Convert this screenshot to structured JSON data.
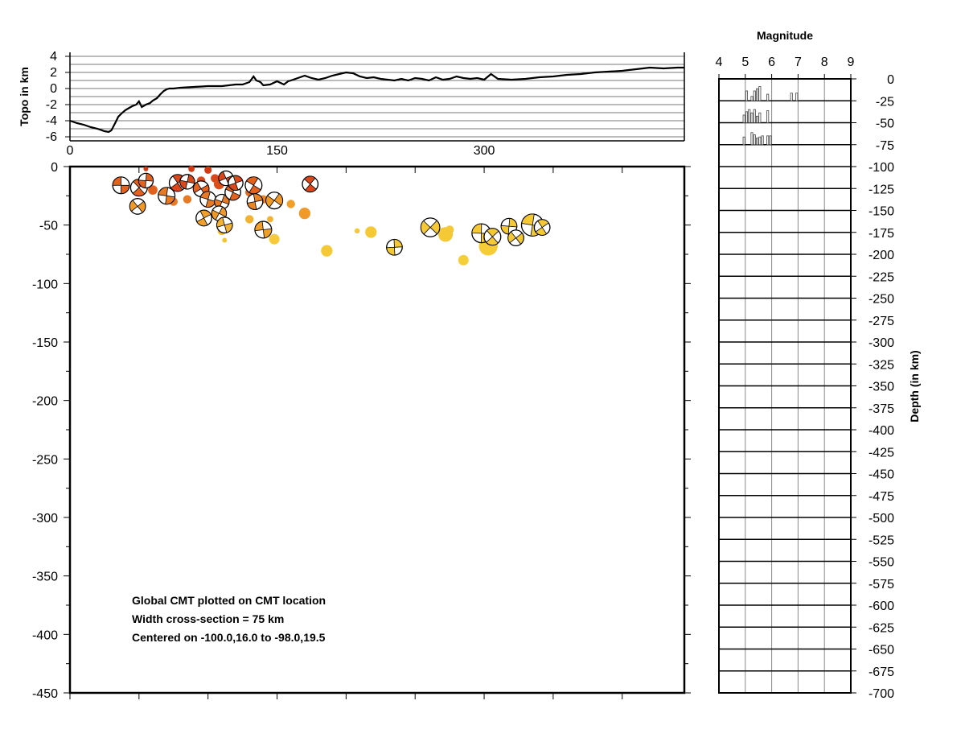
{
  "chart_data": [
    {
      "type": "line",
      "panel": "topography",
      "ylabel": "Topo in km",
      "xlim": [
        0,
        445
      ],
      "ylim": [
        -6.5,
        4.5
      ],
      "x_ticks": [
        "0",
        "150",
        "300"
      ],
      "y_ticks": [
        "4",
        "2",
        "0",
        "-2",
        "-4",
        "-6"
      ],
      "x": [
        0,
        5,
        10,
        15,
        20,
        25,
        28,
        30,
        33,
        35,
        38,
        40,
        43,
        45,
        48,
        50,
        52,
        55,
        58,
        60,
        63,
        65,
        68,
        70,
        72,
        75,
        80,
        90,
        100,
        110,
        120,
        125,
        130,
        133,
        135,
        138,
        140,
        145,
        150,
        155,
        158,
        160,
        165,
        170,
        175,
        180,
        185,
        190,
        195,
        200,
        205,
        210,
        215,
        220,
        225,
        230,
        235,
        240,
        245,
        250,
        255,
        260,
        265,
        270,
        275,
        280,
        285,
        290,
        295,
        300,
        305,
        310,
        320,
        330,
        340,
        350,
        360,
        370,
        380,
        390,
        400,
        410,
        420,
        430,
        440,
        445
      ],
      "y": [
        -4.0,
        -4.3,
        -4.5,
        -4.8,
        -5.0,
        -5.3,
        -5.4,
        -5.2,
        -4.2,
        -3.5,
        -3.0,
        -2.7,
        -2.4,
        -2.2,
        -2.0,
        -1.6,
        -2.3,
        -2.0,
        -1.8,
        -1.5,
        -1.2,
        -0.8,
        -0.3,
        -0.1,
        0.0,
        0.0,
        0.1,
        0.2,
        0.3,
        0.3,
        0.5,
        0.5,
        0.8,
        1.5,
        1.0,
        0.8,
        0.4,
        0.5,
        0.9,
        0.5,
        0.9,
        1.0,
        1.3,
        1.6,
        1.3,
        1.1,
        1.3,
        1.6,
        1.8,
        2.0,
        1.9,
        1.5,
        1.3,
        1.4,
        1.2,
        1.1,
        1.0,
        1.2,
        1.0,
        1.3,
        1.2,
        1.0,
        1.4,
        1.1,
        1.2,
        1.5,
        1.3,
        1.2,
        1.3,
        1.1,
        1.8,
        1.2,
        1.1,
        1.2,
        1.4,
        1.5,
        1.7,
        1.8,
        2.0,
        2.1,
        2.2,
        2.4,
        2.6,
        2.5,
        2.6,
        2.6
      ]
    },
    {
      "type": "scatter",
      "panel": "cross-section",
      "xlim": [
        0,
        445
      ],
      "ylim": [
        -450,
        0
      ],
      "y_ticks": [
        "0",
        "-50",
        "-100",
        "-150",
        "-200",
        "-250",
        "-300",
        "-350",
        "-400",
        "-450"
      ],
      "points": [
        {
          "x": 55,
          "y": -2,
          "mag": 4.6,
          "color": "#d33a12"
        },
        {
          "x": 88,
          "y": -2,
          "mag": 4.8,
          "color": "#d33a12"
        },
        {
          "x": 100,
          "y": -3,
          "mag": 4.9,
          "color": "#d33a12"
        },
        {
          "x": 105,
          "y": -10,
          "mag": 5.0,
          "color": "#d9471a"
        },
        {
          "x": 108,
          "y": -15,
          "mag": 5.2,
          "color": "#dc4e1a"
        },
        {
          "x": 95,
          "y": -12,
          "mag": 5.0,
          "color": "#d9471a"
        },
        {
          "x": 60,
          "y": -20,
          "mag": 5.1,
          "color": "#e0601c"
        },
        {
          "x": 70,
          "y": -22,
          "mag": 5.0,
          "color": "#e36b20"
        },
        {
          "x": 75,
          "y": -30,
          "mag": 5.0,
          "color": "#e77a25"
        },
        {
          "x": 85,
          "y": -28,
          "mag": 5.0,
          "color": "#e77a25"
        },
        {
          "x": 130,
          "y": -22,
          "mag": 5.0,
          "color": "#e36b20"
        },
        {
          "x": 140,
          "y": -28,
          "mag": 5.0,
          "color": "#ea8527"
        },
        {
          "x": 160,
          "y": -32,
          "mag": 5.0,
          "color": "#f0a02a"
        },
        {
          "x": 170,
          "y": -40,
          "mag": 5.3,
          "color": "#ef9a2a"
        },
        {
          "x": 130,
          "y": -45,
          "mag": 5.0,
          "color": "#f3b232"
        },
        {
          "x": 145,
          "y": -45,
          "mag": 4.8,
          "color": "#f3b232"
        },
        {
          "x": 110,
          "y": -55,
          "mag": 5.0,
          "color": "#f4bc33"
        },
        {
          "x": 112,
          "y": -63,
          "mag": 4.6,
          "color": "#f4c437"
        },
        {
          "x": 148,
          "y": -62,
          "mag": 5.2,
          "color": "#f6ca38"
        },
        {
          "x": 186,
          "y": -72,
          "mag": 5.3,
          "color": "#f5c835"
        },
        {
          "x": 208,
          "y": -55,
          "mag": 4.7,
          "color": "#f5c835"
        },
        {
          "x": 218,
          "y": -56,
          "mag": 5.3,
          "color": "#f5c835"
        },
        {
          "x": 270,
          "y": -55,
          "mag": 4.8,
          "color": "#f5c835"
        },
        {
          "x": 275,
          "y": -54,
          "mag": 5.0,
          "color": "#f5c835"
        },
        {
          "x": 272,
          "y": -58,
          "mag": 5.6,
          "color": "#f5c835"
        },
        {
          "x": 285,
          "y": -80,
          "mag": 5.2,
          "color": "#f5cf3a"
        },
        {
          "x": 303,
          "y": -68,
          "mag": 6.0,
          "color": "#f6cc38"
        },
        {
          "x": 325,
          "y": -62,
          "mag": 5.2,
          "color": "#f6cc38"
        }
      ],
      "mechanisms": [
        {
          "x": 37,
          "y": -16,
          "mag": 5.8,
          "color": "#e3631e"
        },
        {
          "x": 50,
          "y": -18,
          "mag": 5.8,
          "color": "#e3631e"
        },
        {
          "x": 55,
          "y": -12,
          "mag": 5.6,
          "color": "#e3631e"
        },
        {
          "x": 49,
          "y": -34,
          "mag": 5.7,
          "color": "#ef9a28"
        },
        {
          "x": 70,
          "y": -25,
          "mag": 5.8,
          "color": "#e77a25"
        },
        {
          "x": 78,
          "y": -14,
          "mag": 5.8,
          "color": "#d9471a"
        },
        {
          "x": 85,
          "y": -13,
          "mag": 5.6,
          "color": "#d9471a"
        },
        {
          "x": 95,
          "y": -19,
          "mag": 5.7,
          "color": "#e3631e"
        },
        {
          "x": 100,
          "y": -28,
          "mag": 5.7,
          "color": "#e77a25"
        },
        {
          "x": 97,
          "y": -44,
          "mag": 5.7,
          "color": "#f0a02a"
        },
        {
          "x": 110,
          "y": -30,
          "mag": 5.6,
          "color": "#e77a25"
        },
        {
          "x": 113,
          "y": -10,
          "mag": 5.6,
          "color": "#d9471a"
        },
        {
          "x": 118,
          "y": -22,
          "mag": 5.7,
          "color": "#e3631e"
        },
        {
          "x": 120,
          "y": -14,
          "mag": 5.6,
          "color": "#d9471a"
        },
        {
          "x": 108,
          "y": -40,
          "mag": 5.6,
          "color": "#ef9a28"
        },
        {
          "x": 112,
          "y": -50,
          "mag": 5.7,
          "color": "#f3b232"
        },
        {
          "x": 133,
          "y": -16,
          "mag": 5.8,
          "color": "#e3631e"
        },
        {
          "x": 134,
          "y": -30,
          "mag": 5.7,
          "color": "#ea8527"
        },
        {
          "x": 148,
          "y": -29,
          "mag": 5.8,
          "color": "#ef9a28"
        },
        {
          "x": 140,
          "y": -54,
          "mag": 5.8,
          "color": "#f0a02a"
        },
        {
          "x": 174,
          "y": -15,
          "mag": 5.7,
          "color": "#d9471a"
        },
        {
          "x": 235,
          "y": -69,
          "mag": 5.7,
          "color": "#f5c835"
        },
        {
          "x": 261,
          "y": -52,
          "mag": 6.0,
          "color": "#f5c835"
        },
        {
          "x": 298,
          "y": -57,
          "mag": 6.0,
          "color": "#f5c835"
        },
        {
          "x": 306,
          "y": -60,
          "mag": 5.8,
          "color": "#f5c835"
        },
        {
          "x": 318,
          "y": -51,
          "mag": 5.7,
          "color": "#f5c835"
        },
        {
          "x": 323,
          "y": -61,
          "mag": 5.7,
          "color": "#f5c835"
        },
        {
          "x": 335,
          "y": -50,
          "mag": 6.3,
          "color": "#f5c835"
        },
        {
          "x": 342,
          "y": -52,
          "mag": 5.7,
          "color": "#f5c835"
        }
      ],
      "annotations": [
        "Global CMT plotted on CMT location",
        "Width cross-section = 75 km",
        "Centered on -100.0,16.0 to -98.0,19.5"
      ]
    },
    {
      "type": "bar",
      "panel": "magnitude-depth histogram",
      "title": "Magnitude",
      "ylabel": "Depth (in km)",
      "xlim": [
        4,
        9
      ],
      "ylim": [
        -700,
        0
      ],
      "x_ticks": [
        "4",
        "5",
        "6",
        "7",
        "8",
        "9"
      ],
      "y_ticks": [
        "0",
        "-25",
        "-50",
        "-75",
        "-100",
        "-125",
        "-150",
        "-175",
        "-200",
        "-225",
        "-250",
        "-275",
        "-300",
        "-325",
        "-350",
        "-375",
        "-400",
        "-425",
        "-450",
        "-475",
        "-500",
        "-525",
        "-550",
        "-575",
        "-600",
        "-625",
        "-650",
        "-675",
        "-700"
      ],
      "bin_width": 0.1,
      "series": [
        {
          "depth_row": -25,
          "mags": [
            5.0,
            5.2,
            5.3,
            5.4,
            5.5,
            5.8,
            6.7,
            6.9
          ],
          "heights": [
            0.45,
            0.2,
            0.45,
            0.55,
            0.65,
            0.3,
            0.35,
            0.35
          ]
        },
        {
          "depth_row": -50,
          "mags": [
            4.9,
            5.0,
            5.1,
            5.2,
            5.3,
            5.4,
            5.5,
            5.8
          ],
          "heights": [
            0.35,
            0.5,
            0.6,
            0.45,
            0.6,
            0.3,
            0.45,
            0.55
          ]
        },
        {
          "depth_row": -75,
          "mags": [
            4.9,
            5.2,
            5.3,
            5.4,
            5.5,
            5.6,
            5.8,
            5.9
          ],
          "heights": [
            0.35,
            0.55,
            0.45,
            0.3,
            0.35,
            0.4,
            0.4,
            0.4
          ]
        }
      ]
    }
  ]
}
